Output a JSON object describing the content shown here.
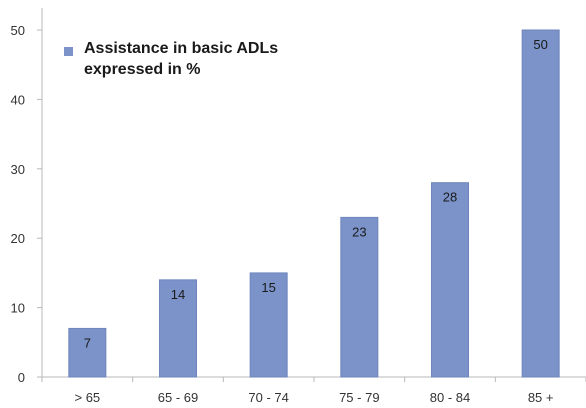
{
  "chart_data": {
    "type": "bar",
    "categories": [
      "> 65",
      "65 - 69",
      "70 - 74",
      "75 - 79",
      "80 - 84",
      "85 +"
    ],
    "series": [
      {
        "name": "Assistance in basic ADLs expressed in %",
        "values": [
          7,
          14,
          15,
          23,
          28,
          50
        ]
      }
    ],
    "data_labels": [
      "7",
      "14",
      "15",
      "23",
      "28",
      "50"
    ],
    "y_ticks": [
      "0",
      "10",
      "20",
      "30",
      "40",
      "50"
    ],
    "ylim": [
      0,
      50
    ],
    "grid": false,
    "legend": {
      "placement": "top-left",
      "lines": [
        "Assistance in basic ADLs",
        "expressed in %"
      ]
    },
    "title": "",
    "xlabel": "",
    "ylabel": "",
    "colors": {
      "bar": "#7b93c9",
      "bar_border": "#6f86bd",
      "axis": "#b8b8b8"
    }
  }
}
